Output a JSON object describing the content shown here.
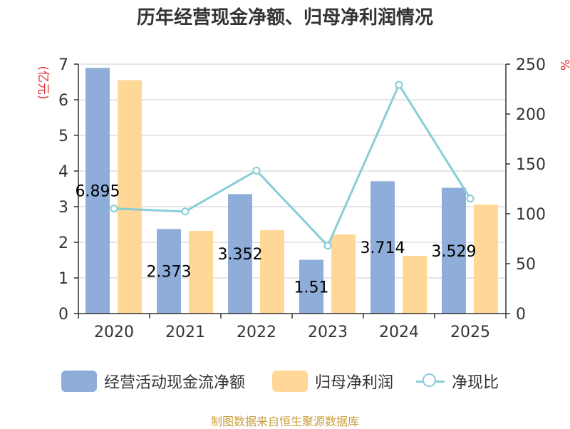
{
  "chart_data": {
    "type": "bar",
    "title": "历年经营现金净额、归母净利润情况",
    "y_left_label": "(亿元)",
    "y_right_label": "%",
    "categories": [
      "2020",
      "2021",
      "2022",
      "2023",
      "2024",
      "2025"
    ],
    "series": [
      {
        "name": "经营活动现金流净额",
        "type": "bar",
        "axis": "left",
        "color": "#8EADD9",
        "values": [
          6.895,
          2.373,
          3.352,
          1.51,
          3.714,
          3.529
        ],
        "labels": [
          "6.895",
          "2.373",
          "3.352",
          "1.51",
          "3.714",
          "3.529"
        ]
      },
      {
        "name": "归母净利润",
        "type": "bar",
        "axis": "left",
        "color": "#FFD797",
        "values": [
          6.55,
          2.32,
          2.34,
          2.22,
          1.62,
          3.06
        ]
      },
      {
        "name": "净现比",
        "type": "line",
        "axis": "right",
        "color": "#87CED6",
        "values": [
          105.3,
          102.3,
          143.3,
          68.0,
          229.3,
          115.3
        ]
      }
    ],
    "y_left": {
      "min": 0,
      "max": 7,
      "ticks": [
        "0",
        "1",
        "2",
        "3",
        "4",
        "5",
        "6",
        "7"
      ]
    },
    "y_right": {
      "min": 0,
      "max": 250,
      "ticks": [
        "0",
        "50",
        "100",
        "150",
        "200",
        "250"
      ]
    },
    "grid": true,
    "legend_position": "bottom"
  },
  "footer": {
    "source": "制图数据来自恒生聚源数据库"
  },
  "colors": {
    "title": "#333333",
    "axis_unit": "#e03030",
    "footer": "#c8a040",
    "grid": "#cccccc"
  }
}
